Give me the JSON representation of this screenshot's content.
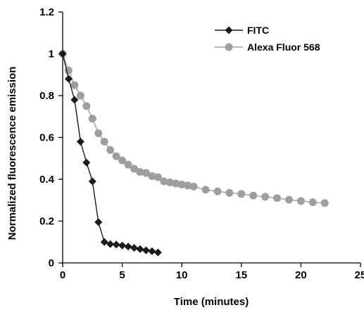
{
  "chart_data": {
    "type": "scatter",
    "xlabel": "Time (minutes)",
    "ylabel": "Normalized fluorescence emission",
    "xlim": [
      0,
      25
    ],
    "ylim": [
      0,
      1.2
    ],
    "xticks": [
      0,
      5,
      10,
      15,
      20,
      25
    ],
    "xtick_labels": [
      "0",
      "5",
      "10",
      "15",
      "20",
      "25"
    ],
    "yticks": [
      0,
      0.2,
      0.4,
      0.6,
      0.8,
      1,
      1.2
    ],
    "ytick_labels": [
      "0",
      "0.2",
      "0.4",
      "0.6",
      "0.8",
      "1",
      "1.2"
    ],
    "grid": false,
    "legend_position": "top-right",
    "series": [
      {
        "name": "FITC",
        "marker": "diamond",
        "color": "#1a1a1a",
        "x": [
          0,
          0.5,
          1.0,
          1.5,
          2.0,
          2.5,
          3.0,
          3.5,
          4.0,
          4.5,
          5.0,
          5.5,
          6.0,
          6.5,
          7.0,
          7.5,
          8.0
        ],
        "y": [
          1.0,
          0.88,
          0.78,
          0.58,
          0.48,
          0.39,
          0.195,
          0.1,
          0.09,
          0.088,
          0.083,
          0.078,
          0.072,
          0.066,
          0.06,
          0.056,
          0.05
        ]
      },
      {
        "name": "Alexa Fluor 568",
        "marker": "circle",
        "color": "#9e9e9e",
        "x": [
          0,
          0.5,
          1.0,
          1.5,
          2.0,
          2.5,
          3.0,
          3.5,
          4.0,
          4.5,
          5.0,
          5.5,
          6.0,
          6.5,
          7.0,
          7.5,
          8.0,
          8.5,
          9.0,
          9.5,
          10.0,
          10.5,
          11.0,
          12.0,
          13.0,
          14.0,
          15.0,
          16.0,
          17.0,
          18.0,
          19.0,
          20.0,
          21.0,
          22.0
        ],
        "y": [
          1.0,
          0.92,
          0.85,
          0.8,
          0.75,
          0.69,
          0.62,
          0.58,
          0.54,
          0.51,
          0.49,
          0.47,
          0.45,
          0.435,
          0.43,
          0.415,
          0.41,
          0.39,
          0.385,
          0.38,
          0.375,
          0.37,
          0.365,
          0.35,
          0.342,
          0.335,
          0.33,
          0.322,
          0.316,
          0.31,
          0.302,
          0.296,
          0.29,
          0.286
        ]
      }
    ]
  }
}
